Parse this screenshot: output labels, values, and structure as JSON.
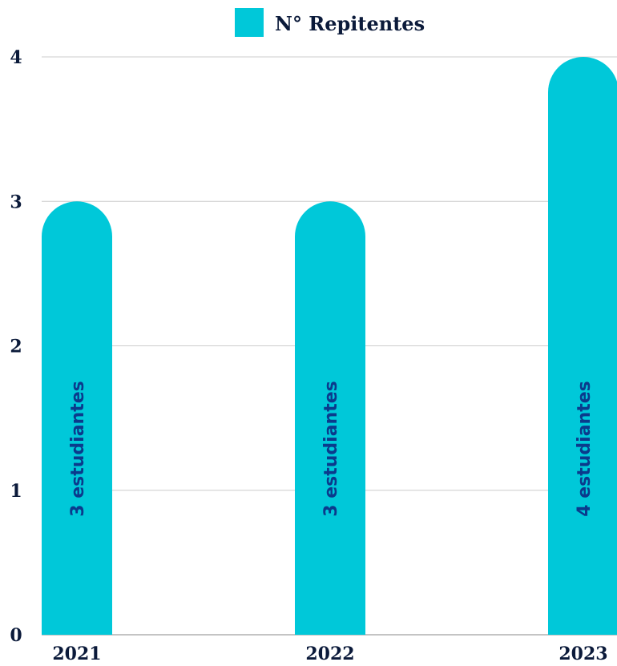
{
  "chart_data": {
    "type": "bar",
    "categories": [
      "2021",
      "2022",
      "2023"
    ],
    "series": [
      {
        "name": "N° Repitentes",
        "values": [
          3,
          3,
          4
        ]
      }
    ],
    "data_labels": [
      "3 estudiantes",
      "3 estudiantes",
      "4 estudiantes"
    ],
    "yticks": [
      "0",
      "1",
      "2",
      "3",
      "4"
    ],
    "ylim": [
      0,
      4
    ],
    "title": "",
    "xlabel": "",
    "ylabel": "",
    "grid": true,
    "legend": "top-center",
    "bar_color": "#00c8d9",
    "label_color": "#0b3a8c",
    "text_color": "#0b1a3a",
    "grid_color": "#cccccc"
  }
}
